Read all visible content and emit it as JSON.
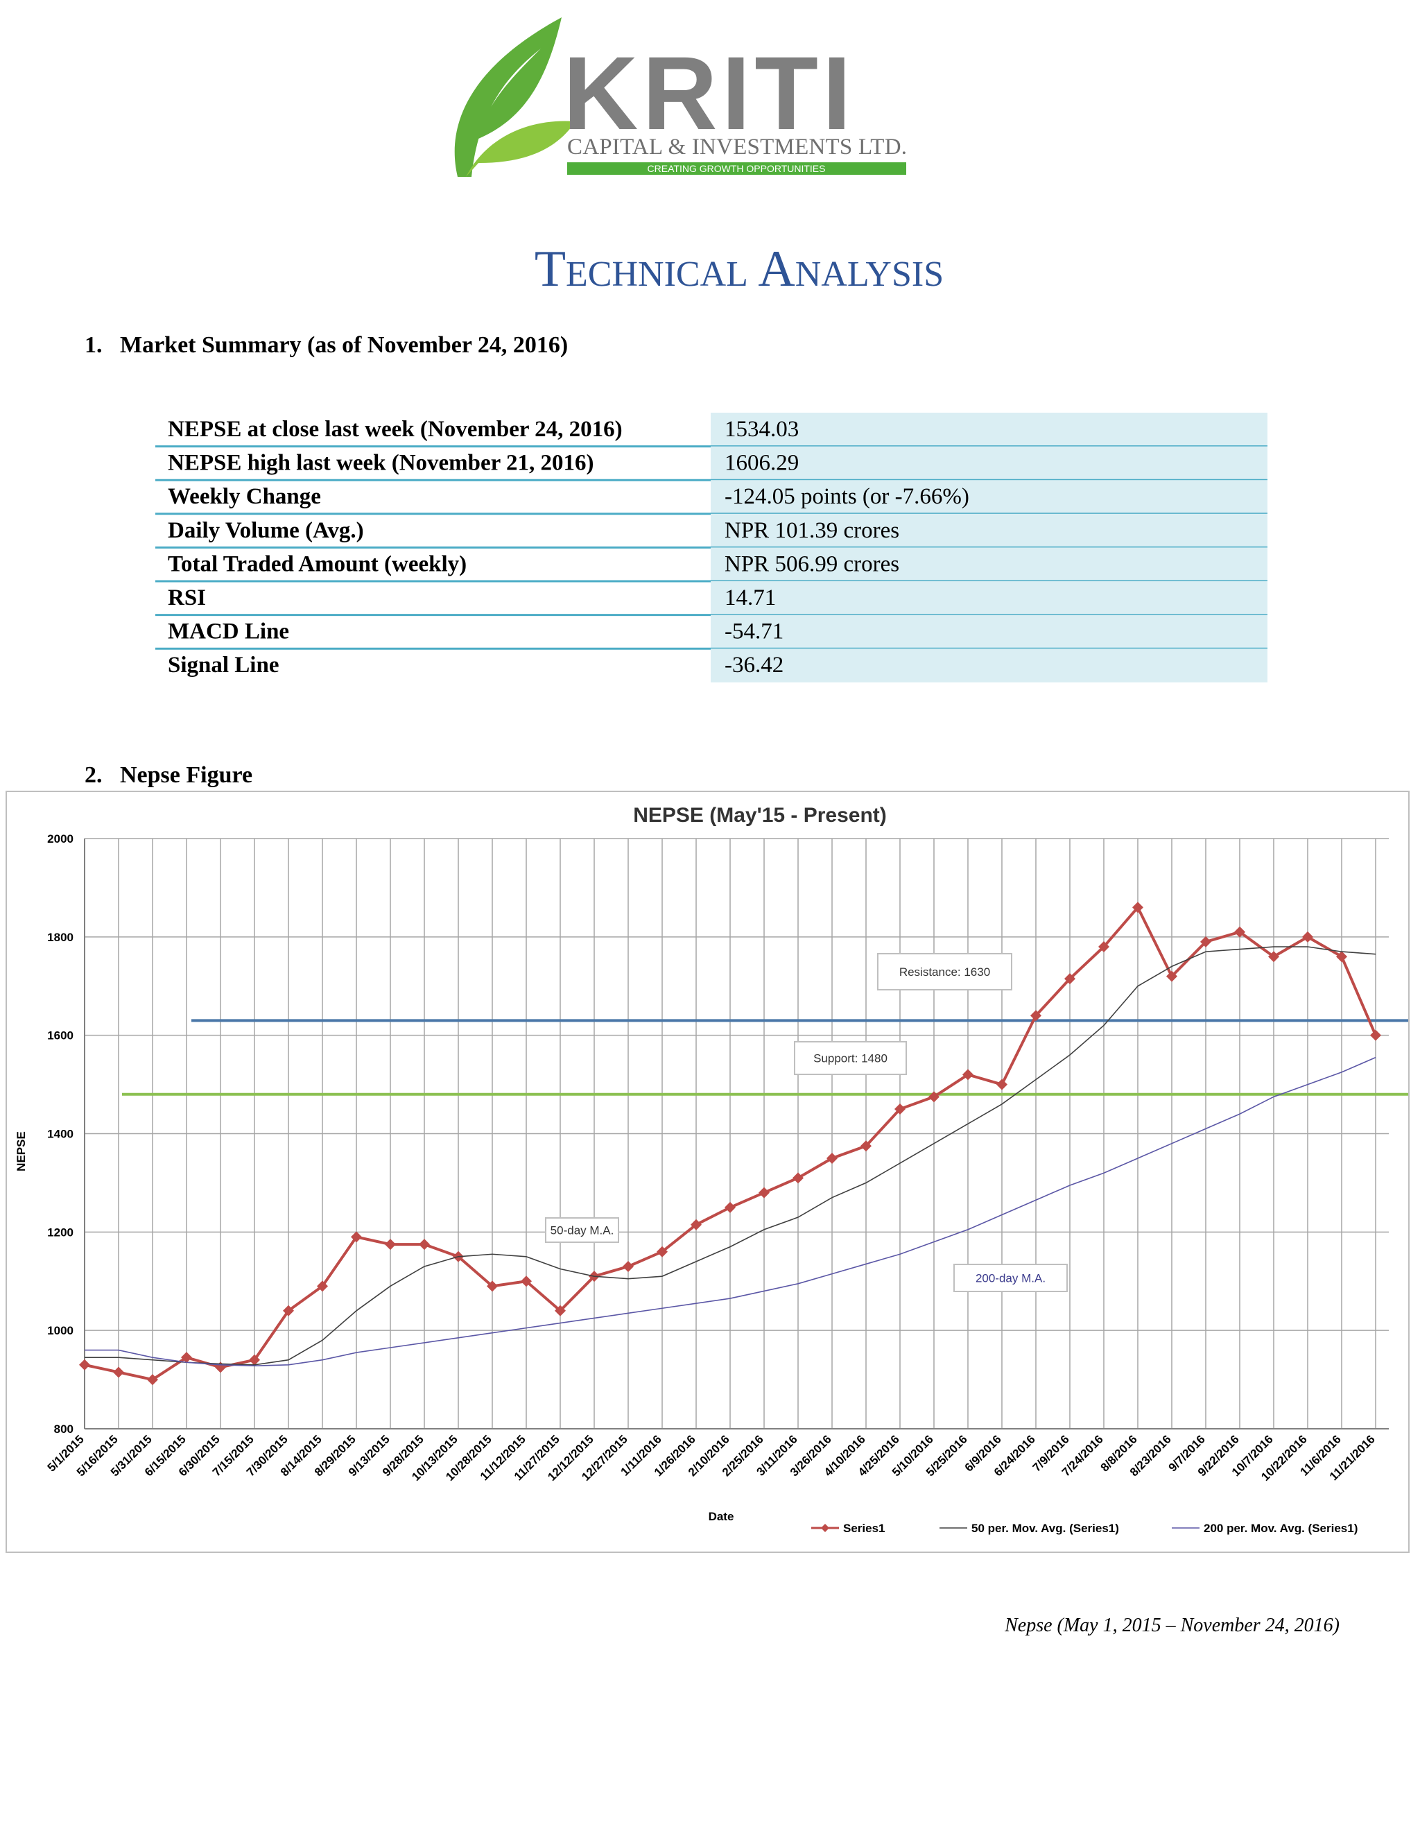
{
  "logo": {
    "name": "KRITI",
    "company": "CAPITAL & INVESTMENTS LTD.",
    "tagline": "CREATING GROWTH OPPORTUNITIES"
  },
  "title": "Technical Analysis",
  "section1": {
    "heading": "1.   Market Summary (as of November 24, 2016)",
    "table": {
      "rows": [
        [
          "NEPSE at close last week (November 24, 2016)",
          "1534.03"
        ],
        [
          "NEPSE high last week (November 21, 2016)",
          "1606.29"
        ],
        [
          "Weekly Change",
          "-124.05 points (or -7.66%)"
        ],
        [
          "Daily Volume (Avg.)",
          "NPR 101.39 crores"
        ],
        [
          "Total Traded Amount (weekly)",
          "NPR 506.99 crores"
        ],
        [
          "RSI",
          "14.71"
        ],
        [
          "MACD Line",
          "-54.71"
        ],
        [
          "Signal Line",
          "-36.42"
        ]
      ]
    }
  },
  "section2": {
    "heading": "2.   Nepse Figure"
  },
  "chart_data": {
    "type": "line",
    "title": "NEPSE (May'15 - Present)",
    "x_label": "Date",
    "y_label": "NEPSE",
    "categories": [
      "5/1/2015",
      "5/16/2015",
      "5/31/2015",
      "6/15/2015",
      "6/30/2015",
      "7/15/2015",
      "7/30/2015",
      "8/14/2015",
      "8/29/2015",
      "9/13/2015",
      "9/28/2015",
      "10/13/2015",
      "10/28/2015",
      "11/12/2015",
      "11/27/2015",
      "12/12/2015",
      "12/27/2015",
      "1/11/2016",
      "1/26/2016",
      "2/10/2016",
      "2/25/2016",
      "3/11/2016",
      "3/26/2016",
      "4/10/2016",
      "4/25/2016",
      "5/10/2016",
      "5/25/2016",
      "6/9/2016",
      "6/24/2016",
      "7/9/2016",
      "7/24/2016",
      "8/8/2016",
      "8/23/2016",
      "9/7/2016",
      "9/22/2016",
      "10/7/2016",
      "10/22/2016",
      "11/6/2016",
      "11/21/2016"
    ],
    "series": [
      {
        "name": "Series1",
        "color": "#be4b48",
        "marker": true,
        "values": [
          930,
          915,
          900,
          945,
          925,
          940,
          1040,
          1090,
          1190,
          1175,
          1175,
          1150,
          1090,
          1100,
          1040,
          1110,
          1130,
          1160,
          1215,
          1250,
          1280,
          1310,
          1350,
          1375,
          1450,
          1475,
          1520,
          1500,
          1640,
          1715,
          1780,
          1860,
          1720,
          1790,
          1810,
          1760,
          1800,
          1760,
          1600
        ]
      },
      {
        "name": "50 per. Mov. Avg. (Series1)",
        "color": "#404040",
        "marker": false,
        "values": [
          945,
          945,
          940,
          935,
          932,
          930,
          940,
          980,
          1040,
          1090,
          1130,
          1150,
          1155,
          1150,
          1125,
          1110,
          1105,
          1110,
          1140,
          1170,
          1205,
          1230,
          1270,
          1300,
          1340,
          1380,
          1420,
          1460,
          1510,
          1560,
          1620,
          1700,
          1740,
          1770,
          1775,
          1780,
          1780,
          1770,
          1765
        ]
      },
      {
        "name": "200 per. Mov. Avg. (Series1)",
        "color": "#5b57a6",
        "marker": false,
        "values": [
          960,
          960,
          945,
          935,
          930,
          928,
          930,
          940,
          955,
          965,
          975,
          985,
          995,
          1005,
          1015,
          1025,
          1035,
          1045,
          1055,
          1065,
          1080,
          1095,
          1115,
          1135,
          1155,
          1180,
          1205,
          1235,
          1265,
          1295,
          1320,
          1350,
          1380,
          1410,
          1440,
          1475,
          1500,
          1525,
          1555
        ]
      }
    ],
    "reference_lines": [
      {
        "value": 1630,
        "color": "#4a77a8"
      },
      {
        "value": 1480,
        "color": "#8cc152"
      }
    ],
    "annotations": [
      "Resistance: 1630",
      "Support: 1480",
      "50-day M.A.",
      "200-day M.A."
    ],
    "ylim": [
      800,
      2000
    ],
    "yticks": [
      800,
      1000,
      1200,
      1400,
      1600,
      1800,
      2000
    ],
    "grid": true,
    "legend": "bottom"
  },
  "caption": "Nepse (May 1, 2015 – November 24, 2016)"
}
